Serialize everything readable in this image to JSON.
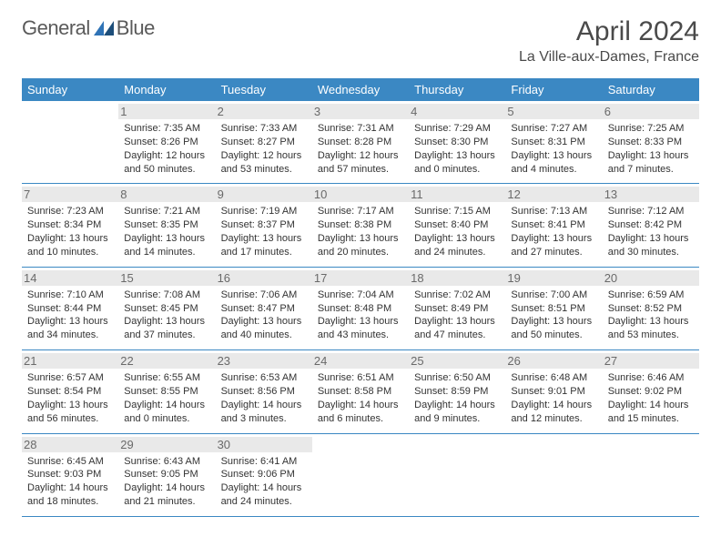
{
  "brand": {
    "word1": "General",
    "word2": "Blue",
    "accent": "#2f73b6"
  },
  "title": "April 2024",
  "location": "La Ville-aux-Dames, France",
  "dow": [
    "Sunday",
    "Monday",
    "Tuesday",
    "Wednesday",
    "Thursday",
    "Friday",
    "Saturday"
  ],
  "colors": {
    "header_bg": "#3b88c3",
    "daynum_bg": "#e9e9e9",
    "border": "#3b88c3"
  },
  "weeks": [
    [
      null,
      {
        "n": "1",
        "sr": "7:35 AM",
        "ss": "8:26 PM",
        "dl": "12 hours and 50 minutes."
      },
      {
        "n": "2",
        "sr": "7:33 AM",
        "ss": "8:27 PM",
        "dl": "12 hours and 53 minutes."
      },
      {
        "n": "3",
        "sr": "7:31 AM",
        "ss": "8:28 PM",
        "dl": "12 hours and 57 minutes."
      },
      {
        "n": "4",
        "sr": "7:29 AM",
        "ss": "8:30 PM",
        "dl": "13 hours and 0 minutes."
      },
      {
        "n": "5",
        "sr": "7:27 AM",
        "ss": "8:31 PM",
        "dl": "13 hours and 4 minutes."
      },
      {
        "n": "6",
        "sr": "7:25 AM",
        "ss": "8:33 PM",
        "dl": "13 hours and 7 minutes."
      }
    ],
    [
      {
        "n": "7",
        "sr": "7:23 AM",
        "ss": "8:34 PM",
        "dl": "13 hours and 10 minutes."
      },
      {
        "n": "8",
        "sr": "7:21 AM",
        "ss": "8:35 PM",
        "dl": "13 hours and 14 minutes."
      },
      {
        "n": "9",
        "sr": "7:19 AM",
        "ss": "8:37 PM",
        "dl": "13 hours and 17 minutes."
      },
      {
        "n": "10",
        "sr": "7:17 AM",
        "ss": "8:38 PM",
        "dl": "13 hours and 20 minutes."
      },
      {
        "n": "11",
        "sr": "7:15 AM",
        "ss": "8:40 PM",
        "dl": "13 hours and 24 minutes."
      },
      {
        "n": "12",
        "sr": "7:13 AM",
        "ss": "8:41 PM",
        "dl": "13 hours and 27 minutes."
      },
      {
        "n": "13",
        "sr": "7:12 AM",
        "ss": "8:42 PM",
        "dl": "13 hours and 30 minutes."
      }
    ],
    [
      {
        "n": "14",
        "sr": "7:10 AM",
        "ss": "8:44 PM",
        "dl": "13 hours and 34 minutes."
      },
      {
        "n": "15",
        "sr": "7:08 AM",
        "ss": "8:45 PM",
        "dl": "13 hours and 37 minutes."
      },
      {
        "n": "16",
        "sr": "7:06 AM",
        "ss": "8:47 PM",
        "dl": "13 hours and 40 minutes."
      },
      {
        "n": "17",
        "sr": "7:04 AM",
        "ss": "8:48 PM",
        "dl": "13 hours and 43 minutes."
      },
      {
        "n": "18",
        "sr": "7:02 AM",
        "ss": "8:49 PM",
        "dl": "13 hours and 47 minutes."
      },
      {
        "n": "19",
        "sr": "7:00 AM",
        "ss": "8:51 PM",
        "dl": "13 hours and 50 minutes."
      },
      {
        "n": "20",
        "sr": "6:59 AM",
        "ss": "8:52 PM",
        "dl": "13 hours and 53 minutes."
      }
    ],
    [
      {
        "n": "21",
        "sr": "6:57 AM",
        "ss": "8:54 PM",
        "dl": "13 hours and 56 minutes."
      },
      {
        "n": "22",
        "sr": "6:55 AM",
        "ss": "8:55 PM",
        "dl": "14 hours and 0 minutes."
      },
      {
        "n": "23",
        "sr": "6:53 AM",
        "ss": "8:56 PM",
        "dl": "14 hours and 3 minutes."
      },
      {
        "n": "24",
        "sr": "6:51 AM",
        "ss": "8:58 PM",
        "dl": "14 hours and 6 minutes."
      },
      {
        "n": "25",
        "sr": "6:50 AM",
        "ss": "8:59 PM",
        "dl": "14 hours and 9 minutes."
      },
      {
        "n": "26",
        "sr": "6:48 AM",
        "ss": "9:01 PM",
        "dl": "14 hours and 12 minutes."
      },
      {
        "n": "27",
        "sr": "6:46 AM",
        "ss": "9:02 PM",
        "dl": "14 hours and 15 minutes."
      }
    ],
    [
      {
        "n": "28",
        "sr": "6:45 AM",
        "ss": "9:03 PM",
        "dl": "14 hours and 18 minutes."
      },
      {
        "n": "29",
        "sr": "6:43 AM",
        "ss": "9:05 PM",
        "dl": "14 hours and 21 minutes."
      },
      {
        "n": "30",
        "sr": "6:41 AM",
        "ss": "9:06 PM",
        "dl": "14 hours and 24 minutes."
      },
      null,
      null,
      null,
      null
    ]
  ],
  "labels": {
    "sunrise": "Sunrise:",
    "sunset": "Sunset:",
    "daylight": "Daylight:"
  }
}
